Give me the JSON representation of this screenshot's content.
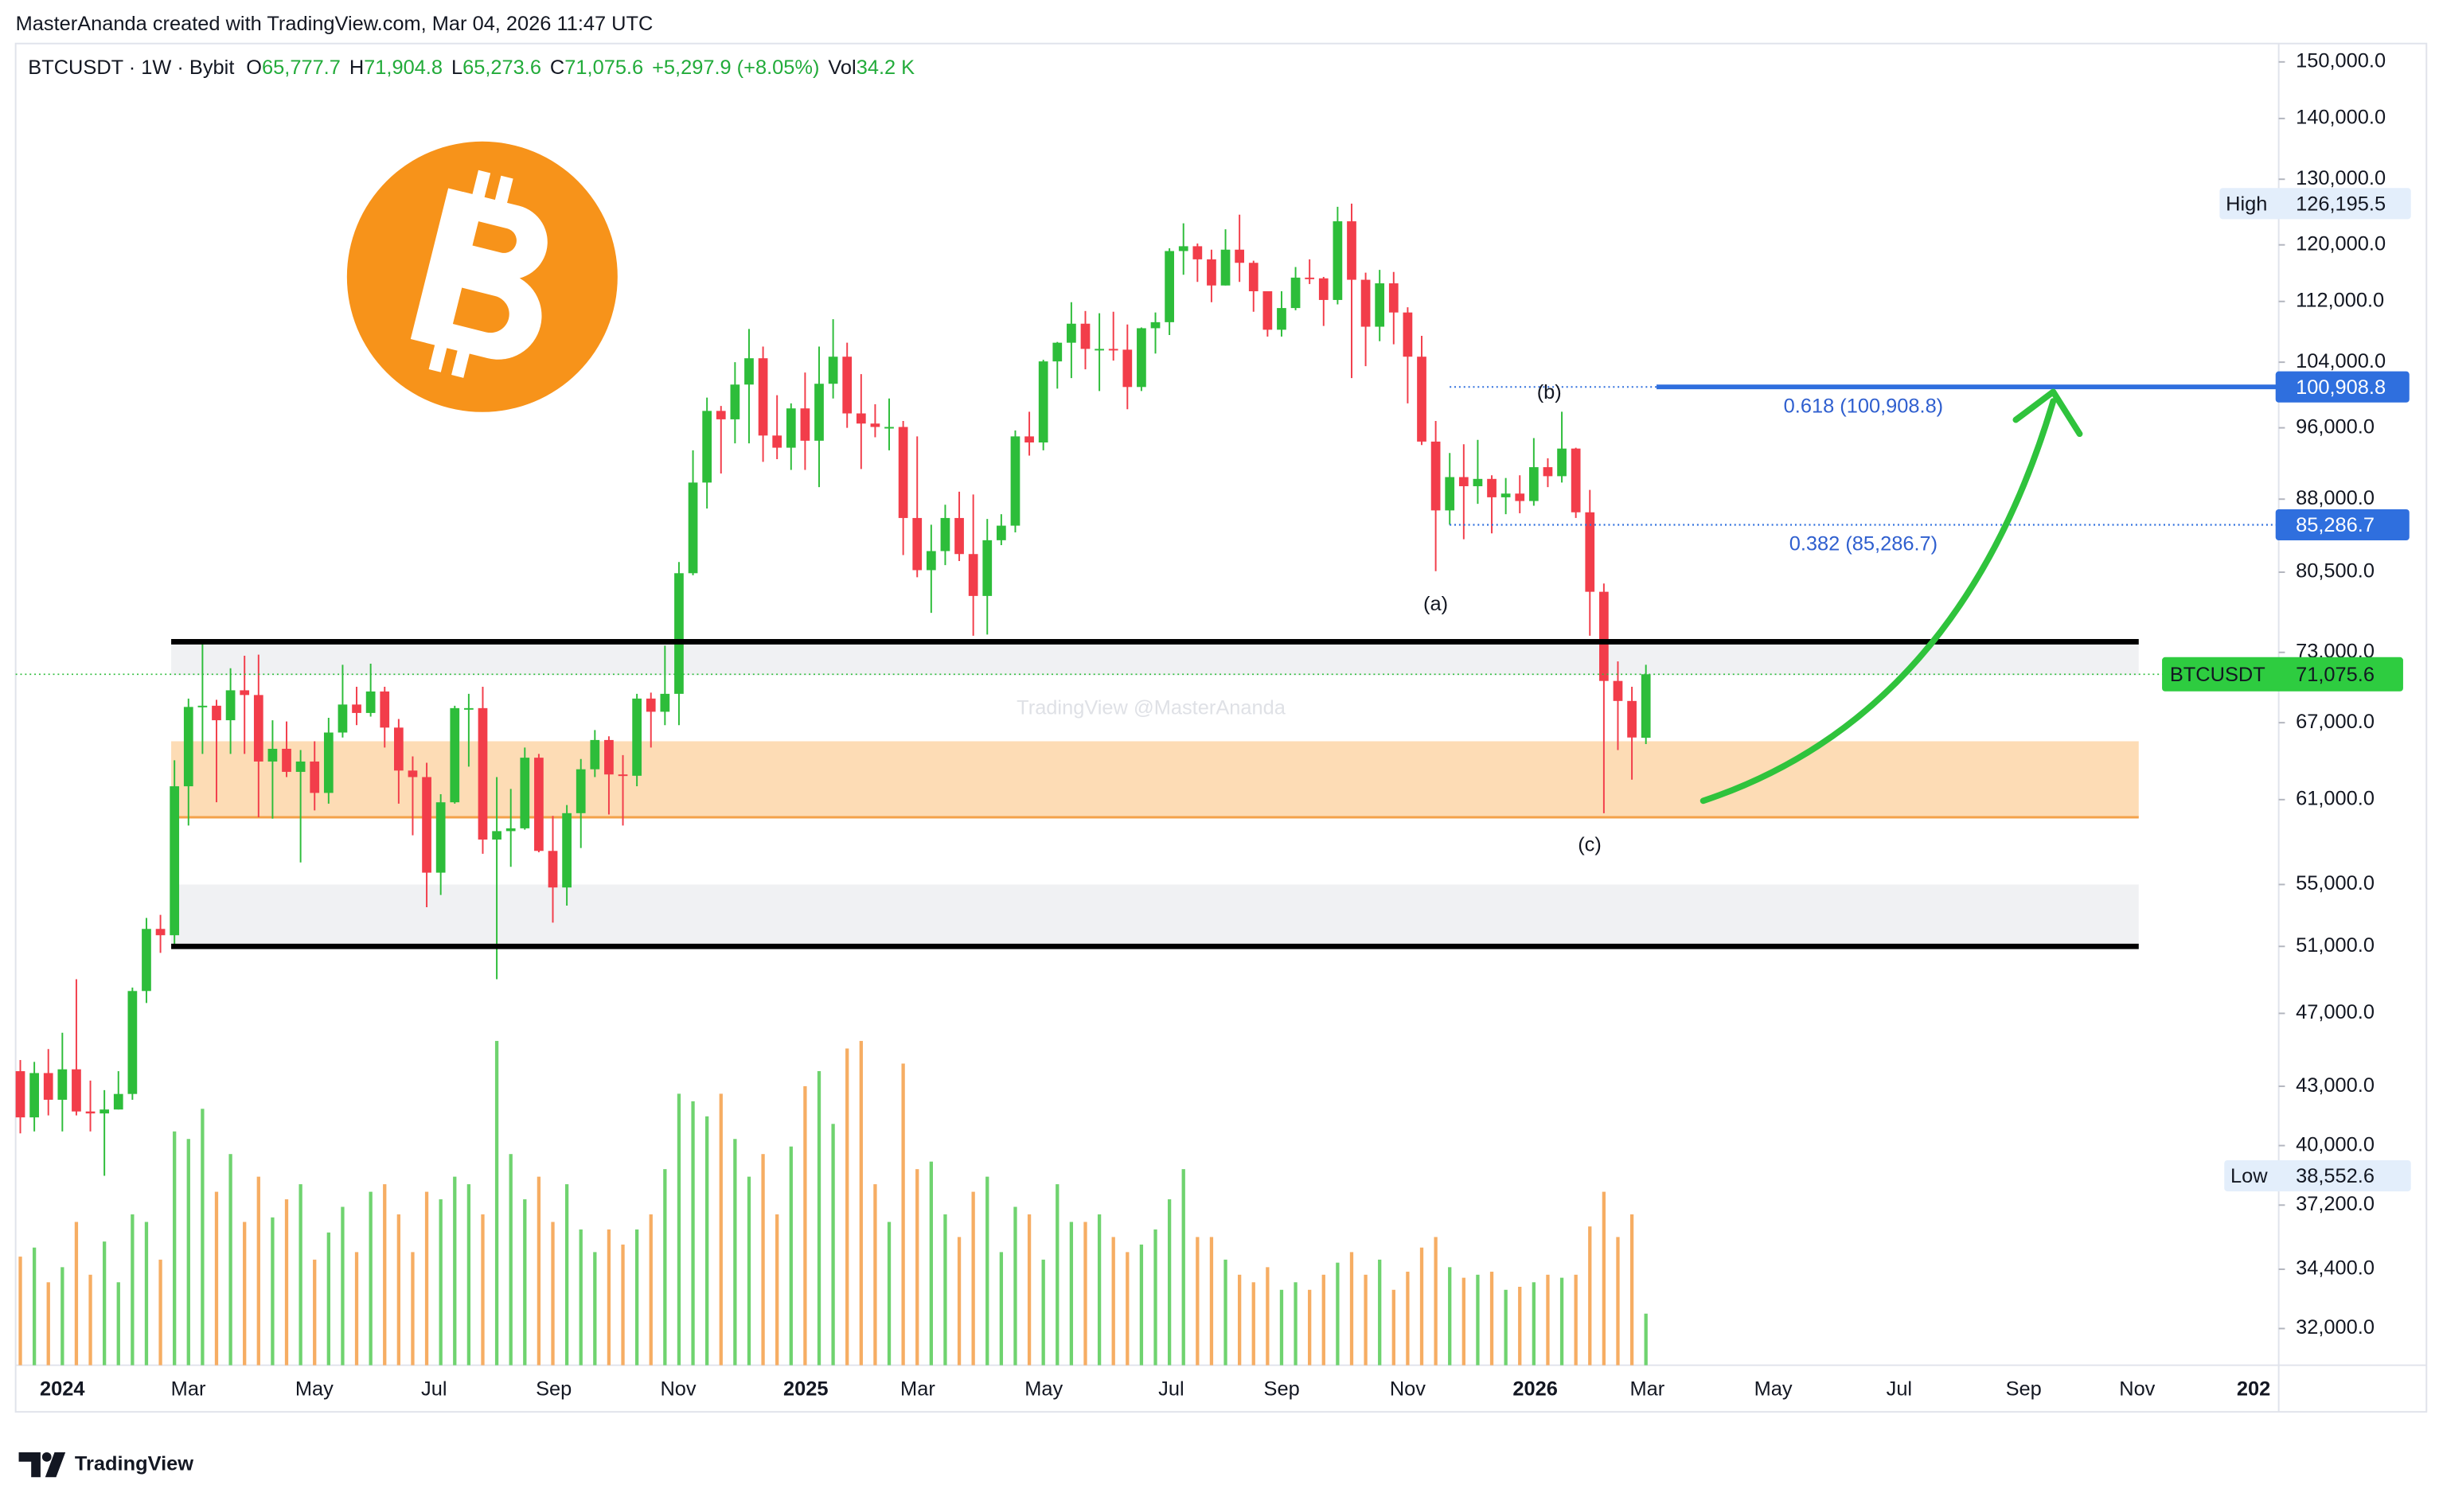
{
  "credit": "MasterAnanda created with TradingView.com, Mar 04, 2026 11:47 UTC",
  "brand": "TradingView",
  "chart_data": {
    "type": "candlestick",
    "legend": {
      "symbol": "BTCUSDT · 1W · Bybit",
      "o_label": "O",
      "open": "65,777.7",
      "h_label": "H",
      "high": "71,904.8",
      "l_label": "L",
      "low": "65,273.6",
      "c_label": "C",
      "close": "71,075.6",
      "change": "+5,297.9 (+8.05%)",
      "vol_label": "Vol",
      "volume": "34.2 K"
    },
    "watermark": "TradingView @MasterAnanda",
    "x_labels": [
      "2024",
      "Mar",
      "May",
      "Jul",
      "Sep",
      "Nov",
      "2025",
      "Mar",
      "May",
      "Jul",
      "Sep",
      "Nov",
      "2026",
      "Mar",
      "May",
      "Jul",
      "Sep",
      "Nov",
      "202"
    ],
    "log_scale": true,
    "grid": false,
    "ylim": [
      30600,
      153400
    ],
    "yticks": [
      {
        "value": 150000,
        "label": "150,000.0"
      },
      {
        "value": 140000,
        "label": "140,000.0"
      },
      {
        "value": 130000,
        "label": "130,000.0"
      },
      {
        "value": 120000,
        "label": "120,000.0"
      },
      {
        "value": 112000,
        "label": "112,000.0"
      },
      {
        "value": 104000,
        "label": "104,000.0"
      },
      {
        "value": 96000,
        "label": "96,000.0"
      },
      {
        "value": 88000,
        "label": "88,000.0"
      },
      {
        "value": 80500,
        "label": "80,500.0"
      },
      {
        "value": 73000,
        "label": "73,000.0"
      },
      {
        "value": 67000,
        "label": "67,000.0"
      },
      {
        "value": 61000,
        "label": "61,000.0"
      },
      {
        "value": 55000,
        "label": "55,000.0"
      },
      {
        "value": 51000,
        "label": "51,000.0"
      },
      {
        "value": 47000,
        "label": "47,000.0"
      },
      {
        "value": 43000,
        "label": "43,000.0"
      },
      {
        "value": 40000,
        "label": "40,000.0"
      },
      {
        "value": 37200,
        "label": "37,200.0"
      },
      {
        "value": 34400,
        "label": "34,400.0"
      },
      {
        "value": 32000,
        "label": "32,000.0"
      }
    ],
    "up_color": "#2dbd3a",
    "down_color": "#f23d4a",
    "volume_up_color": "#6fd36f",
    "volume_down_color": "#f6ad63",
    "open": [
      43800,
      41400,
      43700,
      42300,
      43900,
      41700,
      41600,
      41800,
      42600,
      48300,
      52100,
      51700,
      62000,
      68300,
      68400,
      67200,
      69700,
      69300,
      63900,
      64900,
      63100,
      63900,
      61500,
      66200,
      68500,
      67800,
      69600,
      66600,
      63200,
      62700,
      55800,
      60800,
      68200,
      68200,
      58100,
      58700,
      58900,
      64200,
      57300,
      54800,
      60000,
      63300,
      65600,
      62900,
      62800,
      69000,
      67900,
      69400,
      80400,
      89800,
      98000,
      97000,
      101200,
      104500,
      95100,
      93700,
      98300,
      94500,
      101300,
      104700,
      97700,
      96500,
      96100,
      96100,
      86000,
      80700,
      82600,
      86000,
      82300,
      78200,
      83700,
      85200,
      95000,
      94300,
      104100,
      106500,
      109000,
      105700,
      105700,
      105600,
      100900,
      108400,
      109200,
      119100,
      119800,
      117900,
      114200,
      119300,
      117400,
      113400,
      108200,
      111100,
      115300,
      115200,
      112200,
      123500,
      115000,
      108600,
      114500,
      110500,
      104700,
      94400,
      86800,
      90400,
      89400,
      90200,
      88200,
      88600,
      87800,
      91500,
      90500,
      93600,
      86600,
      78600,
      70500,
      68800,
      65777.7
    ],
    "high": [
      44400,
      44300,
      45000,
      45900,
      49000,
      43300,
      42800,
      43800,
      48500,
      52800,
      53000,
      64000,
      69000,
      73800,
      68900,
      71600,
      72700,
      72800,
      67200,
      67100,
      64800,
      65500,
      67400,
      71900,
      70000,
      72000,
      70000,
      67300,
      64300,
      63800,
      61400,
      68400,
      69400,
      70000,
      62700,
      61800,
      65000,
      64500,
      59800,
      60600,
      64100,
      66400,
      65900,
      64400,
      69400,
      69500,
      73600,
      81500,
      93400,
      99600,
      98600,
      104000,
      108300,
      106000,
      99900,
      98900,
      102700,
      106000,
      109600,
      106500,
      102500,
      98800,
      99500,
      96800,
      95000,
      85300,
      87400,
      88800,
      88500,
      85900,
      86400,
      95700,
      97900,
      104300,
      106600,
      111900,
      110700,
      110400,
      110600,
      108900,
      108500,
      110500,
      119500,
      123200,
      120200,
      119300,
      122300,
      124500,
      117700,
      113400,
      113400,
      116800,
      117900,
      115400,
      125700,
      126195.5,
      116000,
      116400,
      116100,
      111200,
      107400,
      96800,
      93100,
      94100,
      94600,
      90600,
      90300,
      90600,
      94800,
      92500,
      97900,
      93700,
      89000,
      79400,
      72200,
      70000,
      71904.8
    ],
    "low": [
      40600,
      40700,
      41500,
      40700,
      41500,
      40700,
      38552.6,
      41800,
      42300,
      47600,
      50600,
      50900,
      59100,
      64500,
      60800,
      64500,
      64500,
      59700,
      59600,
      62700,
      56500,
      60200,
      60700,
      65800,
      66800,
      67500,
      65000,
      60700,
      58400,
      53500,
      54300,
      60700,
      63500,
      57100,
      49000,
      56200,
      58800,
      57200,
      52500,
      53600,
      57500,
      62700,
      59900,
      59100,
      62000,
      65000,
      66800,
      66800,
      80200,
      87000,
      90800,
      94200,
      94200,
      92100,
      92400,
      91200,
      91200,
      89300,
      99500,
      96000,
      91300,
      94900,
      93400,
      82200,
      80000,
      76600,
      81200,
      81600,
      74500,
      74600,
      83200,
      84500,
      92800,
      93400,
      100700,
      102000,
      103100,
      100400,
      104200,
      98200,
      100400,
      105100,
      107500,
      115700,
      114700,
      111900,
      114200,
      114700,
      110600,
      107300,
      107300,
      110800,
      114400,
      108700,
      111600,
      102000,
      103500,
      106700,
      106300,
      98900,
      94000,
      80600,
      85300,
      83800,
      87500,
      84400,
      86400,
      86500,
      87300,
      89300,
      89800,
      86000,
      74500,
      60000,
      64800,
      62500,
      65273.6
    ],
    "close": [
      41400,
      43700,
      42300,
      43900,
      41700,
      41600,
      41800,
      42600,
      48300,
      52100,
      51700,
      62000,
      68300,
      68400,
      67200,
      69700,
      69300,
      63900,
      64900,
      63100,
      63900,
      61500,
      66200,
      68500,
      67800,
      69600,
      66600,
      63200,
      62700,
      55800,
      60800,
      68200,
      68200,
      58100,
      58700,
      58900,
      64200,
      57300,
      54800,
      60000,
      63300,
      65600,
      62900,
      62800,
      69000,
      67900,
      69400,
      80400,
      89800,
      98000,
      97000,
      101200,
      104500,
      95100,
      93700,
      98300,
      94500,
      101300,
      104700,
      97700,
      96500,
      96100,
      96100,
      86000,
      80700,
      82600,
      86000,
      82300,
      78200,
      83700,
      85200,
      95000,
      94300,
      104100,
      106500,
      109000,
      105700,
      105700,
      105600,
      100900,
      108400,
      109200,
      119100,
      119800,
      117900,
      114200,
      119300,
      117400,
      113400,
      108200,
      111100,
      115300,
      115200,
      112200,
      123500,
      115000,
      108600,
      114500,
      110500,
      104700,
      94400,
      86800,
      90400,
      89400,
      90200,
      88200,
      88600,
      87800,
      91500,
      90500,
      93600,
      86600,
      78600,
      70500,
      68800,
      65800,
      71075.6
    ],
    "volume": [
      72,
      78,
      55,
      65,
      95,
      60,
      82,
      55,
      100,
      95,
      70,
      155,
      150,
      170,
      115,
      140,
      95,
      125,
      98,
      110,
      120,
      70,
      88,
      105,
      75,
      115,
      120,
      100,
      75,
      115,
      110,
      125,
      120,
      100,
      215,
      140,
      110,
      125,
      95,
      120,
      90,
      75,
      90,
      80,
      90,
      100,
      130,
      180,
      175,
      165,
      180,
      150,
      125,
      140,
      100,
      145,
      185,
      195,
      160,
      210,
      215,
      120,
      95,
      200,
      130,
      135,
      100,
      85,
      115,
      125,
      75,
      105,
      100,
      70,
      120,
      95,
      95,
      100,
      85,
      75,
      80,
      90,
      110,
      130,
      85,
      85,
      70,
      60,
      55,
      65,
      50,
      55,
      50,
      60,
      68,
      75,
      60,
      70,
      50,
      62,
      78,
      85,
      65,
      58,
      60,
      62,
      50,
      52,
      55,
      60,
      58,
      60,
      92,
      115,
      85,
      100,
      34.2
    ],
    "levels": {
      "lines": [
        73950,
        51000
      ],
      "orange_zone": [
        59700,
        65500
      ],
      "grey_zones": [
        [
          71000,
          73950
        ],
        [
          51000,
          55000
        ]
      ]
    },
    "fib": [
      {
        "value": 100908.8,
        "label": "100,908.8",
        "annotation": "0.618 (100,908.8)"
      },
      {
        "value": 85286.7,
        "label": "85,286.7",
        "annotation": "0.382 (85,286.7)"
      }
    ],
    "high_marker": {
      "name": "High",
      "value": 126195.5,
      "label": "126,195.5"
    },
    "low_marker": {
      "name": "Low",
      "value": 38552.6,
      "label": "38,552.6"
    },
    "price_marker": {
      "name": "BTCUSDT",
      "value": 71075.6,
      "label": "71,075.6"
    },
    "waves": [
      "(a)",
      "(b)",
      "(c)"
    ]
  }
}
